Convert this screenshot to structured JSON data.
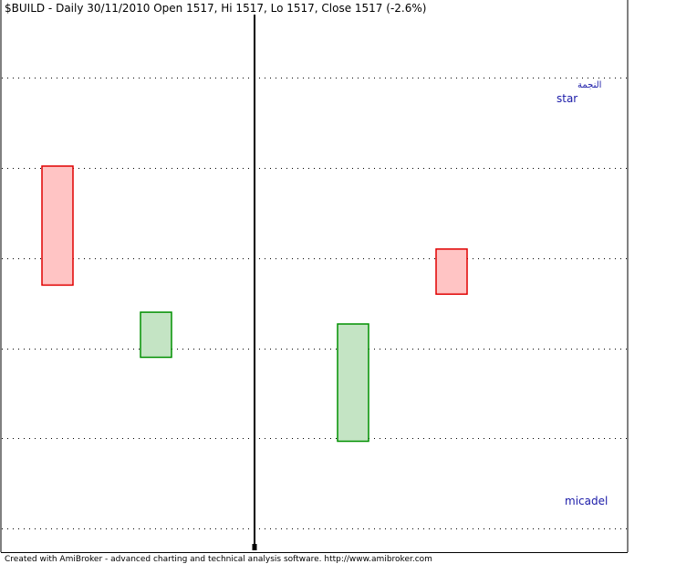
{
  "header": {
    "title": "$BUILD - Daily 30/11/2010 Open 1517, Hi 1517, Lo 1517, Close 1517 (-2.6%)"
  },
  "footer": {
    "credit": "Created with AmiBroker - advanced charting and technical analysis software. http://www.amibroker.com"
  },
  "annotations": {
    "arabic_label": "النجمة",
    "star_label": "star",
    "author_label": "micadel"
  },
  "colors": {
    "bear_fill": "#ffc4c4",
    "bear_stroke": "#e00000",
    "bull_fill": "#c4e4c4",
    "bull_stroke": "#009000",
    "annotation": "#1a1aa8",
    "grid": "#000000",
    "cursor": "#000000"
  },
  "chart_data": {
    "type": "candlestick",
    "title": "$BUILD - Daily 30/11/2010 Open 1517, Hi 1517, Lo 1517, Close 1517 (-2.6%)",
    "grid": "horizontal-dotted",
    "y_axis_labels": "none",
    "ylim": [
      0,
      5.95
    ],
    "gridlines": [
      0.25,
      1.25,
      2.25,
      3.25,
      4.25,
      5.25
    ],
    "candles": [
      {
        "index": 1,
        "direction": "bear",
        "open": 4.27,
        "close": 2.95
      },
      {
        "index": 2,
        "direction": "bull",
        "open": 2.15,
        "close": 2.65
      },
      {
        "index": 4,
        "direction": "bull",
        "open": 1.22,
        "close": 2.52
      },
      {
        "index": 5,
        "direction": "bear",
        "open": 3.35,
        "close": 2.85
      }
    ],
    "cursor_index": 3
  }
}
